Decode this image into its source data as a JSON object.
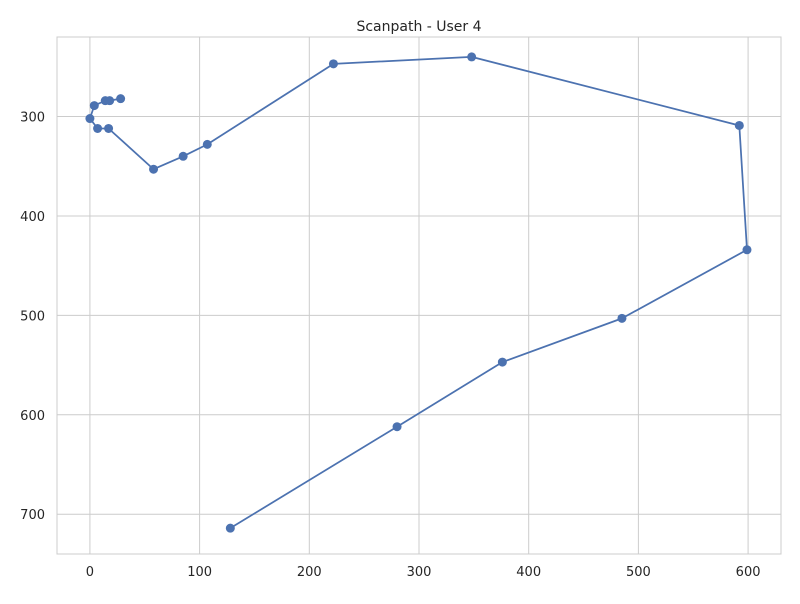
{
  "chart_data": {
    "type": "line",
    "title": "Scanpath - User 4",
    "xlabel": "",
    "ylabel": "",
    "xlim": [
      -30,
      630
    ],
    "ylim": [
      740,
      220
    ],
    "y_inverted": true,
    "grid": true,
    "x_ticks": [
      0,
      100,
      200,
      300,
      400,
      500,
      600
    ],
    "y_ticks": [
      300,
      400,
      500,
      600,
      700
    ],
    "series": [
      {
        "color": "#4c72b0",
        "marker": "circle",
        "points": [
          {
            "x": 28,
            "y": 282
          },
          {
            "x": 18,
            "y": 284
          },
          {
            "x": 14,
            "y": 284
          },
          {
            "x": 4,
            "y": 289
          },
          {
            "x": 0,
            "y": 302
          },
          {
            "x": 7,
            "y": 312
          },
          {
            "x": 17,
            "y": 312
          },
          {
            "x": 58,
            "y": 353
          },
          {
            "x": 85,
            "y": 340
          },
          {
            "x": 107,
            "y": 328
          },
          {
            "x": 222,
            "y": 247
          },
          {
            "x": 348,
            "y": 240
          },
          {
            "x": 592,
            "y": 309
          },
          {
            "x": 599,
            "y": 434
          },
          {
            "x": 485,
            "y": 503
          },
          {
            "x": 376,
            "y": 547
          },
          {
            "x": 280,
            "y": 612
          },
          {
            "x": 128,
            "y": 714
          }
        ]
      }
    ]
  }
}
